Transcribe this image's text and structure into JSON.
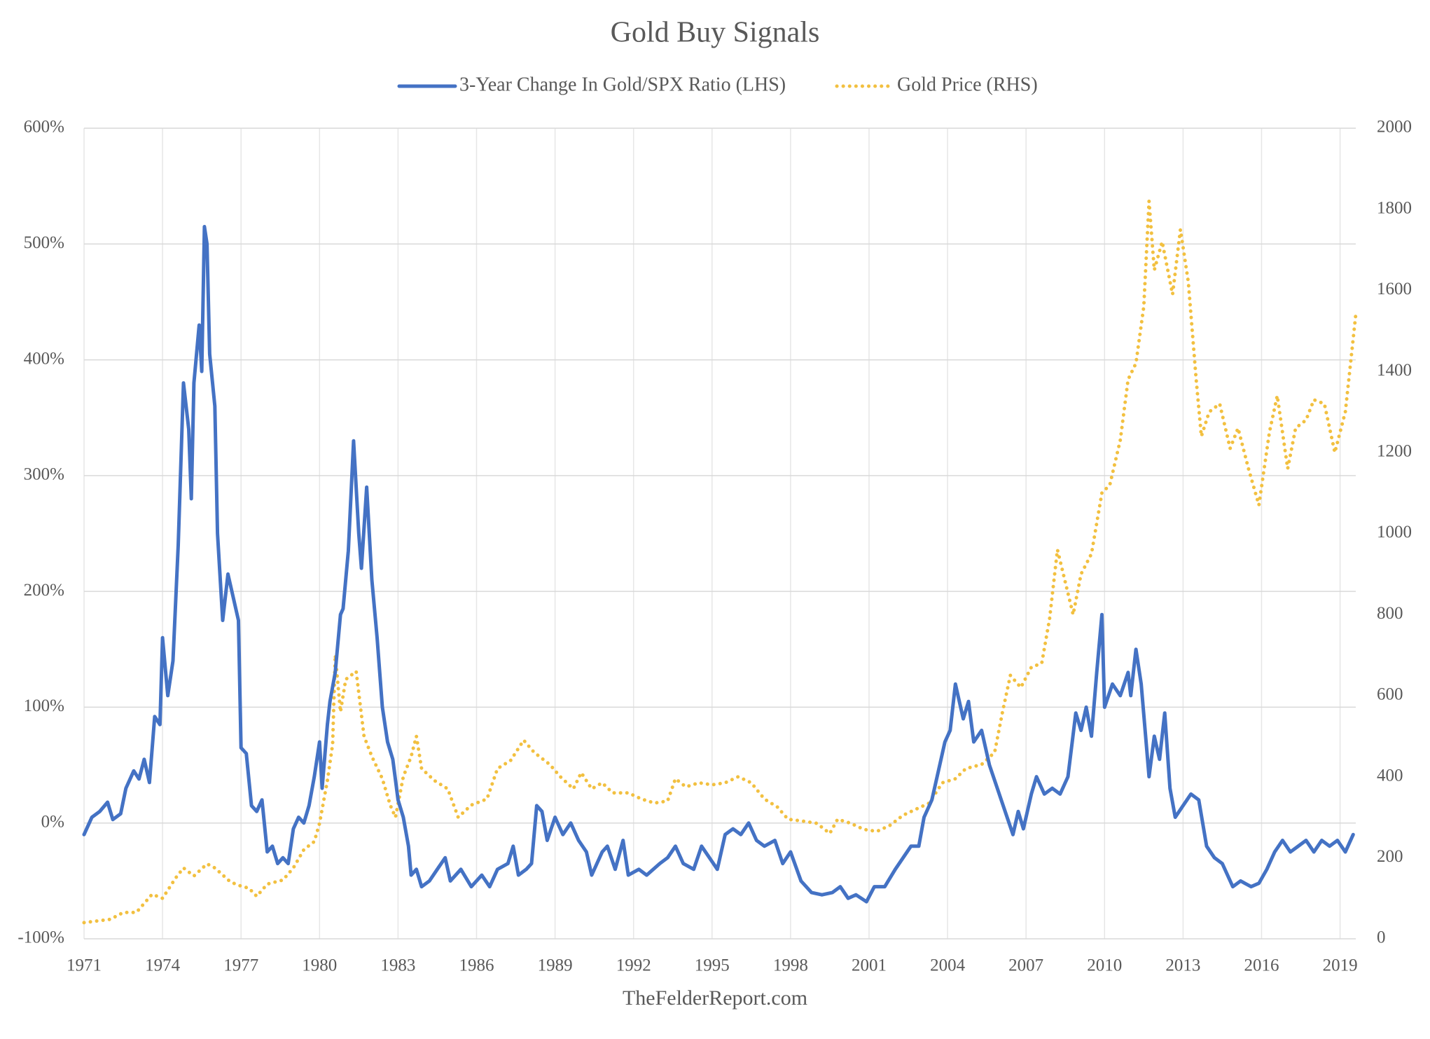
{
  "chart_data": {
    "type": "line",
    "title": "Gold Buy Signals",
    "source": "TheFelderReport.com",
    "xlim": [
      1971,
      2019.6
    ],
    "xticks": [
      1971,
      1974,
      1977,
      1980,
      1983,
      1986,
      1989,
      1992,
      1995,
      1998,
      2001,
      2004,
      2007,
      2010,
      2013,
      2016,
      2019
    ],
    "ylim": [
      -100,
      600
    ],
    "yticks": [
      {
        "value": -100,
        "label": "-100%"
      },
      {
        "value": 0,
        "label": "0%"
      },
      {
        "value": 100,
        "label": "100%"
      },
      {
        "value": 200,
        "label": "200%"
      },
      {
        "value": 300,
        "label": "300%"
      },
      {
        "value": 400,
        "label": "400%"
      },
      {
        "value": 500,
        "label": "500%"
      },
      {
        "value": 600,
        "label": "600%"
      }
    ],
    "y2lim": [
      0,
      2000
    ],
    "y2ticks": [
      0,
      200,
      400,
      600,
      800,
      1000,
      1200,
      1400,
      1600,
      1800,
      2000
    ],
    "grid": true,
    "legend": "top",
    "series": [
      {
        "name": "3-Year Change In Gold/SPX Ratio (LHS)",
        "color": "#4472c4",
        "style": "solid",
        "x": [
          1971.0,
          1971.3,
          1971.6,
          1971.9,
          1972.1,
          1972.4,
          1972.6,
          1972.9,
          1973.1,
          1973.3,
          1973.5,
          1973.7,
          1973.9,
          1974.0,
          1974.2,
          1974.4,
          1974.6,
          1974.8,
          1975.0,
          1975.1,
          1975.2,
          1975.4,
          1975.5,
          1975.6,
          1975.7,
          1975.8,
          1976.0,
          1976.1,
          1976.3,
          1976.5,
          1976.7,
          1976.9,
          1977.0,
          1977.2,
          1977.4,
          1977.6,
          1977.8,
          1978.0,
          1978.2,
          1978.4,
          1978.6,
          1978.8,
          1979.0,
          1979.2,
          1979.4,
          1979.6,
          1979.8,
          1980.0,
          1980.1,
          1980.3,
          1980.4,
          1980.6,
          1980.8,
          1980.9,
          1981.1,
          1981.3,
          1981.5,
          1981.6,
          1981.8,
          1982.0,
          1982.2,
          1982.4,
          1982.6,
          1982.8,
          1983.0,
          1983.2,
          1983.4,
          1983.5,
          1983.7,
          1983.9,
          1984.2,
          1984.5,
          1984.8,
          1985.0,
          1985.4,
          1985.8,
          1986.2,
          1986.5,
          1986.8,
          1987.2,
          1987.4,
          1987.6,
          1987.9,
          1988.1,
          1988.3,
          1988.5,
          1988.7,
          1989.0,
          1989.3,
          1989.6,
          1989.9,
          1990.2,
          1990.4,
          1990.8,
          1991.0,
          1991.3,
          1991.6,
          1991.8,
          1992.2,
          1992.5,
          1993.0,
          1993.3,
          1993.6,
          1993.9,
          1994.3,
          1994.6,
          1994.9,
          1995.2,
          1995.5,
          1995.8,
          1996.1,
          1996.4,
          1996.7,
          1997.0,
          1997.4,
          1997.7,
          1998.0,
          1998.4,
          1998.8,
          1999.2,
          1999.6,
          1999.9,
          2000.2,
          2000.5,
          2000.9,
          2001.2,
          2001.6,
          2002.0,
          2002.3,
          2002.6,
          2002.9,
          2003.1,
          2003.4,
          2003.7,
          2003.9,
          2004.1,
          2004.3,
          2004.6,
          2004.8,
          2005.0,
          2005.3,
          2005.6,
          2005.9,
          2006.2,
          2006.5,
          2006.7,
          2006.9,
          2007.2,
          2007.4,
          2007.7,
          2008.0,
          2008.3,
          2008.6,
          2008.9,
          2009.1,
          2009.3,
          2009.5,
          2009.7,
          2009.9,
          2010.0,
          2010.3,
          2010.6,
          2010.9,
          2011.0,
          2011.2,
          2011.4,
          2011.7,
          2011.9,
          2012.1,
          2012.3,
          2012.5,
          2012.7,
          2013.0,
          2013.3,
          2013.6,
          2013.9,
          2014.2,
          2014.5,
          2014.9,
          2015.2,
          2015.6,
          2015.9,
          2016.2,
          2016.5,
          2016.8,
          2017.1,
          2017.4,
          2017.7,
          2018.0,
          2018.3,
          2018.6,
          2018.9,
          2019.2,
          2019.5
        ],
        "values": [
          -10,
          5,
          10,
          18,
          3,
          8,
          30,
          45,
          38,
          55,
          35,
          92,
          85,
          160,
          110,
          140,
          240,
          380,
          340,
          280,
          380,
          430,
          390,
          515,
          500,
          405,
          360,
          250,
          175,
          215,
          195,
          175,
          65,
          60,
          15,
          10,
          20,
          -25,
          -20,
          -35,
          -30,
          -35,
          -5,
          5,
          0,
          15,
          40,
          70,
          30,
          85,
          105,
          130,
          180,
          185,
          235,
          330,
          250,
          220,
          290,
          210,
          160,
          100,
          70,
          55,
          20,
          5,
          -20,
          -45,
          -40,
          -55,
          -50,
          -40,
          -30,
          -50,
          -40,
          -55,
          -45,
          -55,
          -40,
          -35,
          -20,
          -45,
          -40,
          -35,
          15,
          10,
          -15,
          5,
          -10,
          0,
          -15,
          -25,
          -45,
          -25,
          -20,
          -40,
          -15,
          -45,
          -40,
          -45,
          -35,
          -30,
          -20,
          -35,
          -40,
          -20,
          -30,
          -40,
          -10,
          -5,
          -10,
          0,
          -15,
          -20,
          -15,
          -35,
          -25,
          -50,
          -60,
          -62,
          -60,
          -55,
          -65,
          -62,
          -68,
          -55,
          -55,
          -40,
          -30,
          -20,
          -20,
          5,
          20,
          50,
          70,
          80,
          120,
          90,
          105,
          70,
          80,
          50,
          30,
          10,
          -10,
          10,
          -5,
          25,
          40,
          25,
          30,
          25,
          40,
          95,
          80,
          100,
          75,
          130,
          180,
          100,
          120,
          110,
          130,
          110,
          150,
          120,
          40,
          75,
          55,
          95,
          30,
          5,
          15,
          25,
          20,
          -20,
          -30,
          -35,
          -55,
          -50,
          -55,
          -52,
          -40,
          -25,
          -15,
          -25,
          -20,
          -15,
          -25,
          -15,
          -20,
          -15,
          -25,
          -10
        ]
      },
      {
        "name": "Gold Price (RHS)",
        "color": "#f2c040",
        "style": "dotted",
        "axis": "y2",
        "x": [
          1971.0,
          1972.0,
          1972.5,
          1973.0,
          1973.6,
          1974.0,
          1974.5,
          1974.8,
          1975.2,
          1975.7,
          1976.0,
          1976.6,
          1977.0,
          1977.3,
          1977.6,
          1978.0,
          1978.6,
          1979.0,
          1979.4,
          1979.8,
          1980.0,
          1980.3,
          1980.5,
          1980.6,
          1980.8,
          1981.0,
          1981.4,
          1981.7,
          1982.0,
          1982.4,
          1982.7,
          1982.9,
          1983.2,
          1983.5,
          1983.7,
          1983.9,
          1984.4,
          1984.9,
          1985.3,
          1985.8,
          1986.4,
          1986.8,
          1987.3,
          1987.8,
          1988.2,
          1988.8,
          1989.2,
          1989.7,
          1990.0,
          1990.4,
          1990.8,
          1991.2,
          1991.8,
          1992.3,
          1992.8,
          1993.3,
          1993.6,
          1994.0,
          1994.5,
          1995.0,
          1995.5,
          1996.0,
          1996.5,
          1997.0,
          1997.5,
          1997.9,
          1998.5,
          1999.0,
          1999.5,
          1999.8,
          2000.3,
          2000.8,
          2001.3,
          2001.8,
          2002.3,
          2002.8,
          2003.3,
          2003.8,
          2004.3,
          2004.7,
          2005.3,
          2005.8,
          2006.1,
          2006.4,
          2006.8,
          2007.2,
          2007.6,
          2007.9,
          2008.2,
          2008.5,
          2008.8,
          2009.1,
          2009.5,
          2009.9,
          2010.2,
          2010.6,
          2010.9,
          2011.2,
          2011.5,
          2011.7,
          2011.9,
          2012.2,
          2012.6,
          2012.9,
          2013.2,
          2013.5,
          2013.7,
          2014.0,
          2014.4,
          2014.8,
          2015.1,
          2015.5,
          2015.9,
          2016.3,
          2016.6,
          2017.0,
          2017.3,
          2017.7,
          2018.0,
          2018.4,
          2018.8,
          2019.2,
          2019.6
        ],
        "values": [
          40,
          48,
          65,
          65,
          110,
          100,
          150,
          175,
          155,
          185,
          175,
          140,
          130,
          125,
          105,
          135,
          145,
          175,
          220,
          240,
          285,
          390,
          480,
          700,
          560,
          640,
          660,
          500,
          450,
          395,
          330,
          300,
          400,
          450,
          500,
          420,
          390,
          370,
          300,
          330,
          345,
          420,
          440,
          490,
          460,
          430,
          400,
          370,
          410,
          370,
          385,
          360,
          360,
          345,
          335,
          340,
          395,
          375,
          385,
          380,
          385,
          400,
          385,
          345,
          325,
          295,
          290,
          285,
          260,
          295,
          285,
          270,
          265,
          280,
          305,
          320,
          335,
          385,
          395,
          420,
          430,
          460,
          560,
          650,
          620,
          670,
          680,
          790,
          960,
          880,
          800,
          900,
          950,
          1100,
          1120,
          1230,
          1380,
          1420,
          1560,
          1820,
          1650,
          1720,
          1590,
          1750,
          1620,
          1380,
          1240,
          1300,
          1320,
          1210,
          1260,
          1160,
          1070,
          1250,
          1340,
          1160,
          1260,
          1280,
          1330,
          1320,
          1200,
          1300,
          1540
        ]
      }
    ]
  }
}
